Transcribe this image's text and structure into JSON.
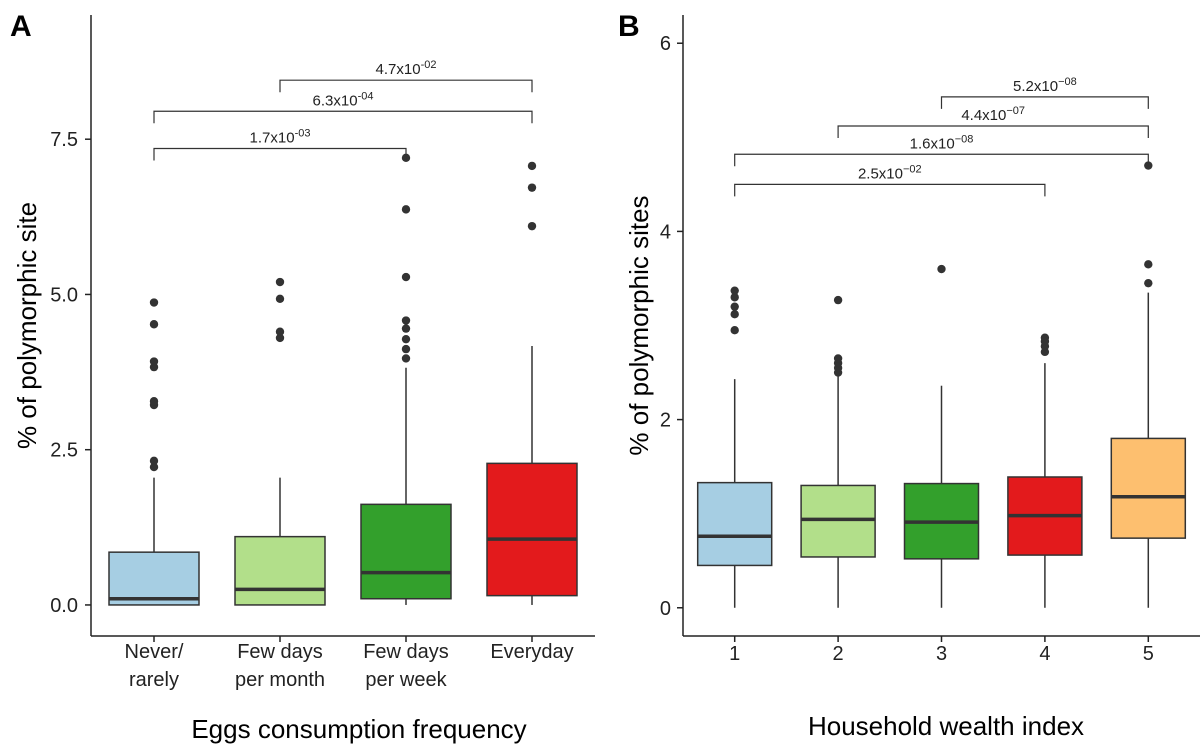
{
  "chart_data": [
    {
      "type": "box",
      "panel_label": "A",
      "xlabel": "Eggs consumption frequency",
      "ylabel": "% of polymorphic site",
      "ylim": [
        -0.5,
        9.5
      ],
      "yticks": [
        0,
        2.5,
        5,
        7.5
      ],
      "ytick_labels": [
        "0.0",
        "2.5",
        "5.0",
        "7.5"
      ],
      "categories": [
        {
          "label": [
            "Never/",
            "rarely"
          ],
          "color": "#a6cee3",
          "whisker_low": 0,
          "q1": 0.0,
          "median": 0.1,
          "q3": 0.85,
          "whisker_high": 2.05,
          "outliers": [
            2.22,
            2.32,
            3.22,
            3.28,
            3.83,
            3.92,
            4.52,
            4.87
          ]
        },
        {
          "label": [
            "Few days",
            "per month"
          ],
          "color": "#b2df8a",
          "whisker_low": 0,
          "q1": 0.0,
          "median": 0.25,
          "q3": 1.1,
          "whisker_high": 2.05,
          "outliers": [
            4.3,
            4.4,
            4.93,
            5.2
          ]
        },
        {
          "label": [
            "Few days",
            "per week"
          ],
          "color": "#33a02c",
          "whisker_low": 0,
          "q1": 0.1,
          "median": 0.52,
          "q3": 1.62,
          "whisker_high": 3.82,
          "outliers": [
            3.97,
            4.12,
            4.28,
            4.45,
            4.58,
            5.28,
            6.37,
            7.2
          ]
        },
        {
          "label": [
            "Everyday"
          ],
          "color": "#e31a1c",
          "whisker_low": 0,
          "q1": 0.15,
          "median": 1.06,
          "q3": 2.28,
          "whisker_high": 4.17,
          "outliers": [
            6.1,
            6.72,
            7.07
          ]
        }
      ],
      "comparisons": [
        {
          "from": 1,
          "to": 3,
          "y": 7.35,
          "mantissa": "1.7x10",
          "exponent": "-03"
        },
        {
          "from": 1,
          "to": 4,
          "y": 7.95,
          "mantissa": "6.3x10",
          "exponent": "-04"
        },
        {
          "from": 2,
          "to": 4,
          "y": 8.45,
          "mantissa": "4.7x10",
          "exponent": "-02"
        }
      ]
    },
    {
      "type": "box",
      "panel_label": "B",
      "xlabel": "Household wealth index",
      "ylabel": "% of polymorphic sites",
      "ylim": [
        -0.3,
        6.3
      ],
      "yticks": [
        0,
        2,
        4,
        6
      ],
      "ytick_labels": [
        "0",
        "2",
        "4",
        "6"
      ],
      "categories": [
        {
          "label": [
            "1"
          ],
          "color": "#a6cee3",
          "whisker_low": 0,
          "q1": 0.45,
          "median": 0.76,
          "q3": 1.33,
          "whisker_high": 2.43,
          "outliers": [
            2.95,
            3.12,
            3.2,
            3.3,
            3.37
          ]
        },
        {
          "label": [
            "2"
          ],
          "color": "#b2df8a",
          "whisker_low": 0,
          "q1": 0.54,
          "median": 0.94,
          "q3": 1.3,
          "whisker_high": 2.46,
          "outliers": [
            2.5,
            2.55,
            2.6,
            2.65,
            3.27
          ]
        },
        {
          "label": [
            "3"
          ],
          "color": "#33a02c",
          "whisker_low": 0,
          "q1": 0.52,
          "median": 0.91,
          "q3": 1.32,
          "whisker_high": 2.36,
          "outliers": [
            3.6
          ]
        },
        {
          "label": [
            "4"
          ],
          "color": "#e31a1c",
          "whisker_low": 0,
          "q1": 0.56,
          "median": 0.98,
          "q3": 1.39,
          "whisker_high": 2.6,
          "outliers": [
            2.72,
            2.78,
            2.83,
            2.87
          ]
        },
        {
          "label": [
            "5"
          ],
          "color": "#fdbf6f",
          "whisker_low": 0,
          "q1": 0.74,
          "median": 1.18,
          "q3": 1.8,
          "whisker_high": 3.35,
          "outliers": [
            3.45,
            3.65,
            4.7
          ]
        }
      ],
      "comparisons": [
        {
          "from": 1,
          "to": 4,
          "y": 4.5,
          "mantissa": "2.5x10",
          "exponent": "−02"
        },
        {
          "from": 1,
          "to": 5,
          "y": 4.82,
          "mantissa": "1.6x10",
          "exponent": "−08"
        },
        {
          "from": 2,
          "to": 5,
          "y": 5.12,
          "mantissa": "4.4x10",
          "exponent": "−07"
        },
        {
          "from": 3,
          "to": 5,
          "y": 5.43,
          "mantissa": "5.2x10",
          "exponent": "−08"
        }
      ]
    }
  ]
}
